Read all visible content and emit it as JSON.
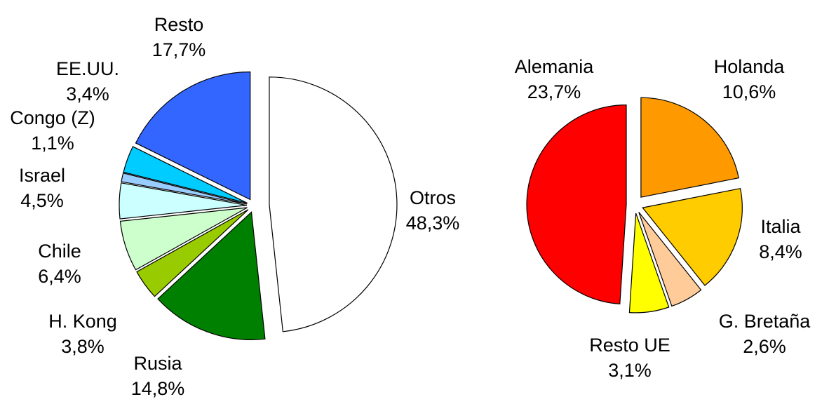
{
  "chart_data": [
    {
      "type": "pie",
      "categories": [
        "Otros",
        "Rusia",
        "H. Kong",
        "Chile",
        "Israel",
        "Congo (Z)",
        "EE.UU.",
        "Resto"
      ],
      "values": [
        48.3,
        14.8,
        3.8,
        6.4,
        4.5,
        1.1,
        3.4,
        17.7
      ],
      "value_labels": [
        "48,3%",
        "14,8%",
        "3,8%",
        "6,4%",
        "4,5%",
        "1,1%",
        "3,4%",
        "17,7%"
      ],
      "colors": [
        "#ffffff",
        "#008000",
        "#99cc00",
        "#ccffcc",
        "#ccffff",
        "#99ccff",
        "#00ccff",
        "#3366ff"
      ]
    },
    {
      "type": "pie",
      "categories": [
        "Holanda",
        "Italia",
        "G. Bretaña",
        "Resto UE",
        "Alemania"
      ],
      "values": [
        10.6,
        8.4,
        2.6,
        3.1,
        23.7
      ],
      "value_labels": [
        "10,6%",
        "8,4%",
        "2,6%",
        "3,1%",
        "23,7%"
      ],
      "colors": [
        "#ff9900",
        "#ffcc00",
        "#ffcc99",
        "#ffff00",
        "#ff0000"
      ]
    }
  ]
}
